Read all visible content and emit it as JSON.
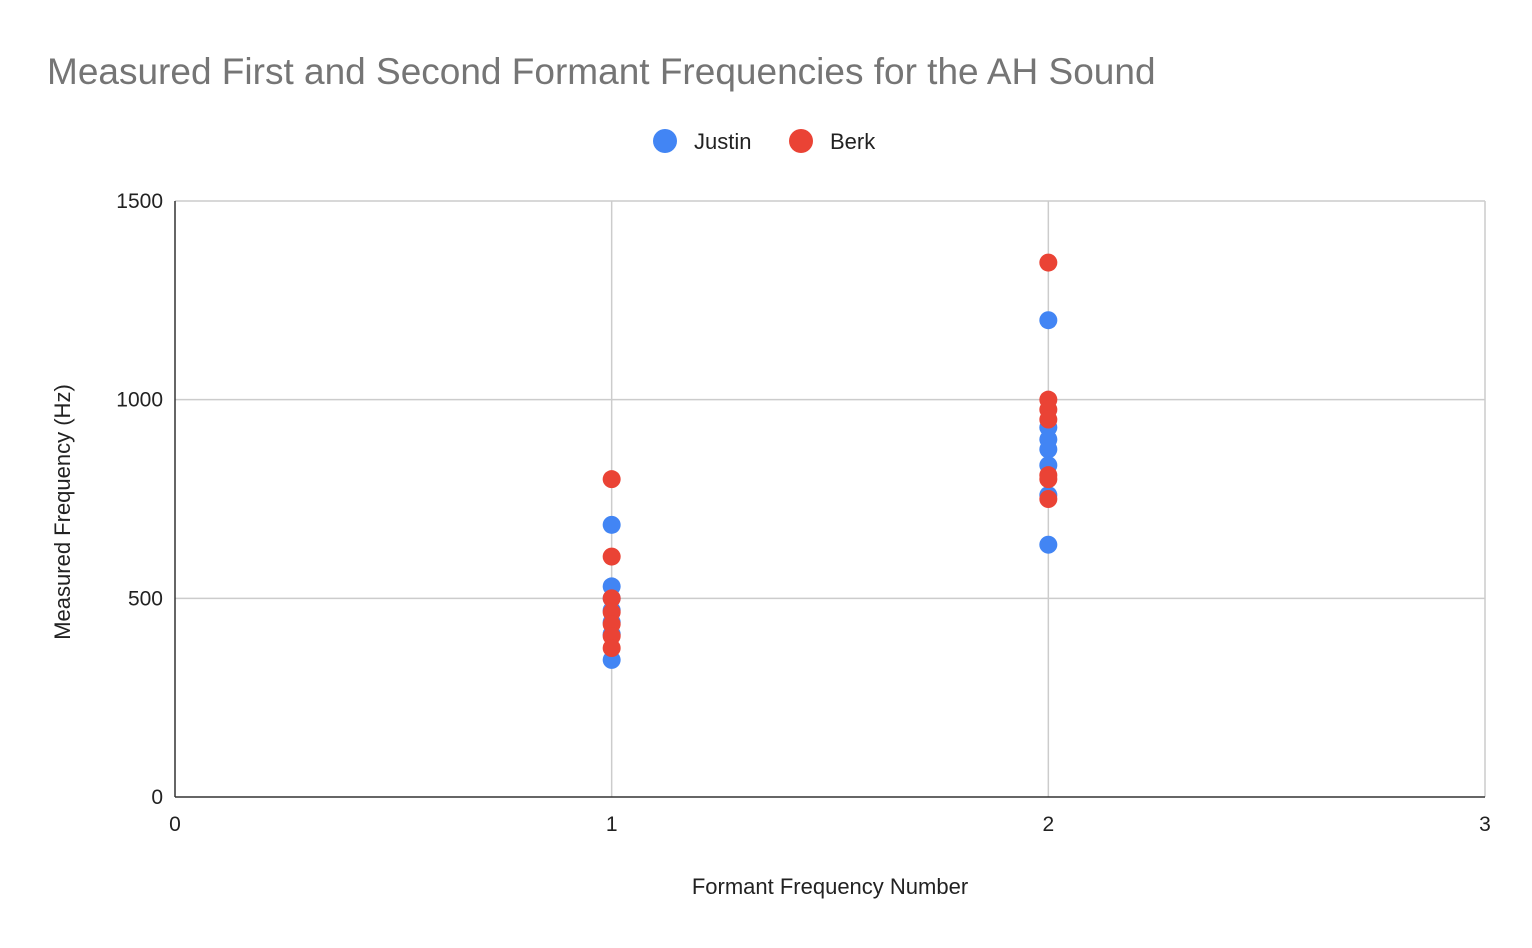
{
  "chart_data": {
    "type": "scatter",
    "title": "Measured First and Second Formant Frequencies for the AH Sound",
    "xlabel": "Formant Frequency Number",
    "ylabel": "Measured Frequency (Hz)",
    "xlim": [
      0,
      3
    ],
    "ylim": [
      0,
      1500
    ],
    "x_ticks": [
      "0",
      "1",
      "2",
      "3"
    ],
    "y_ticks": [
      "0",
      "500",
      "1000",
      "1500"
    ],
    "grid": true,
    "legend_position": "top",
    "series": [
      {
        "name": "Justin",
        "color": "#4285f4",
        "points": [
          [
            1,
            685
          ],
          [
            1,
            530
          ],
          [
            1,
            500
          ],
          [
            1,
            470
          ],
          [
            1,
            440
          ],
          [
            1,
            410
          ],
          [
            1,
            345
          ],
          [
            2,
            1200
          ],
          [
            2,
            930
          ],
          [
            2,
            900
          ],
          [
            2,
            875
          ],
          [
            2,
            835
          ],
          [
            2,
            760
          ],
          [
            2,
            635
          ]
        ]
      },
      {
        "name": "Berk",
        "color": "#ea4335",
        "points": [
          [
            1,
            800
          ],
          [
            1,
            605
          ],
          [
            1,
            500
          ],
          [
            1,
            465
          ],
          [
            1,
            435
          ],
          [
            1,
            405
          ],
          [
            1,
            375
          ],
          [
            2,
            1345
          ],
          [
            2,
            1000
          ],
          [
            2,
            975
          ],
          [
            2,
            950
          ],
          [
            2,
            810
          ],
          [
            2,
            800
          ],
          [
            2,
            750
          ]
        ]
      }
    ]
  }
}
